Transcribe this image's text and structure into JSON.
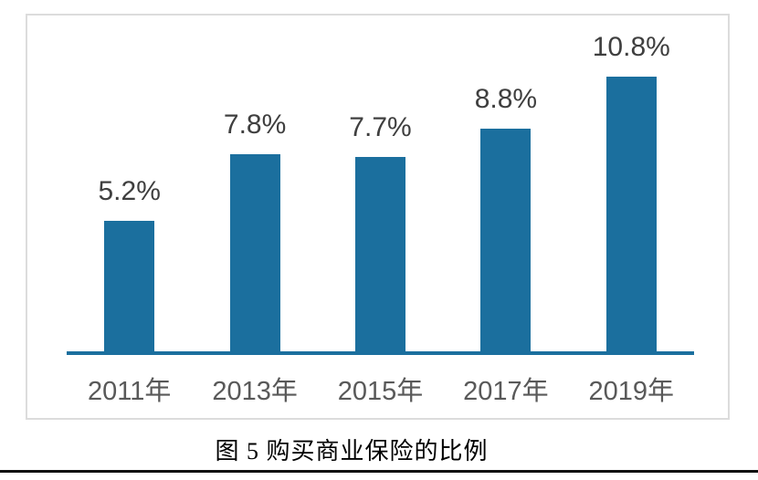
{
  "figure": {
    "caption": "图 5 购买商业保险的比例"
  },
  "chart_data": {
    "type": "bar",
    "title": "图 5 购买商业保险的比例",
    "categories": [
      "2011年",
      "2013年",
      "2015年",
      "2017年",
      "2019年"
    ],
    "values": [
      5.2,
      7.8,
      7.7,
      8.8,
      10.8
    ],
    "value_labels": [
      "5.2%",
      "7.8%",
      "7.7%",
      "8.8%",
      "10.8%"
    ],
    "xlabel": "",
    "ylabel": "",
    "ylim": [
      0,
      12
    ],
    "grid": false,
    "legend": false,
    "data_labels_position": "above-bars",
    "bar_color": "#1B6F9E",
    "axis_line_color": "#1B6F9E",
    "value_label_color": "#3F3F3F",
    "tick_label_color": "#595959",
    "frame_border_color": "#DCDCDC"
  }
}
